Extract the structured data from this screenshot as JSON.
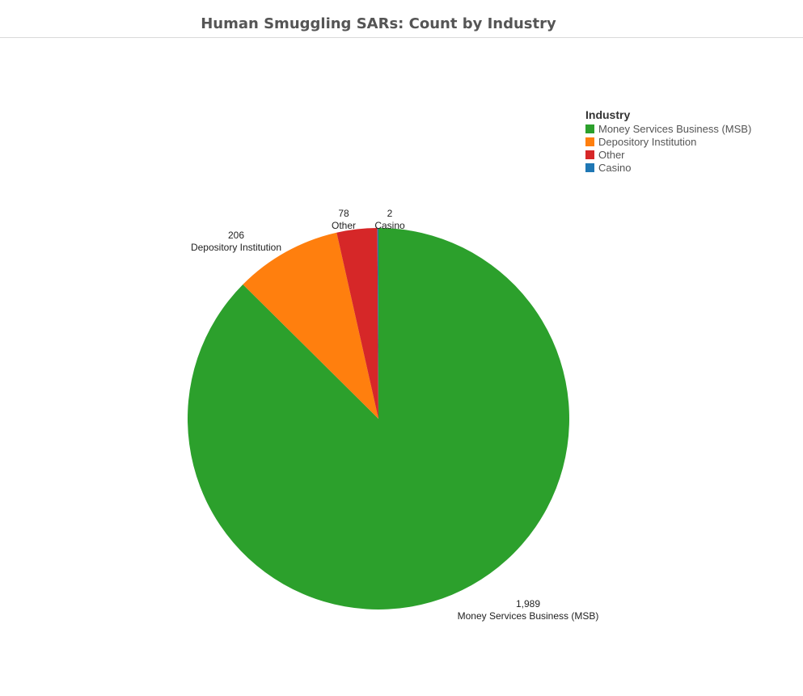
{
  "page": {
    "title": "Human Smuggling SARs: Count by Industry"
  },
  "chart_data": {
    "type": "pie",
    "title": "Human Smuggling SARs: Count by Industry",
    "legend_title": "Industry",
    "legend_position": "top-right",
    "slices": [
      {
        "label": "Money Services Business (MSB)",
        "value": 1989,
        "value_label": "1,989",
        "color": "#2ca02c"
      },
      {
        "label": "Depository Institution",
        "value": 206,
        "value_label": "206",
        "color": "#ff7f0e"
      },
      {
        "label": "Other",
        "value": 78,
        "value_label": "78",
        "color": "#d62728"
      },
      {
        "label": "Casino",
        "value": 2,
        "value_label": "2",
        "color": "#1f77b4"
      }
    ],
    "legend": [
      {
        "label": "Money Services Business (MSB)",
        "color": "#2ca02c"
      },
      {
        "label": "Depository Institution",
        "color": "#ff7f0e"
      },
      {
        "label": "Other",
        "color": "#d62728"
      },
      {
        "label": "Casino",
        "color": "#1f77b4"
      }
    ]
  }
}
